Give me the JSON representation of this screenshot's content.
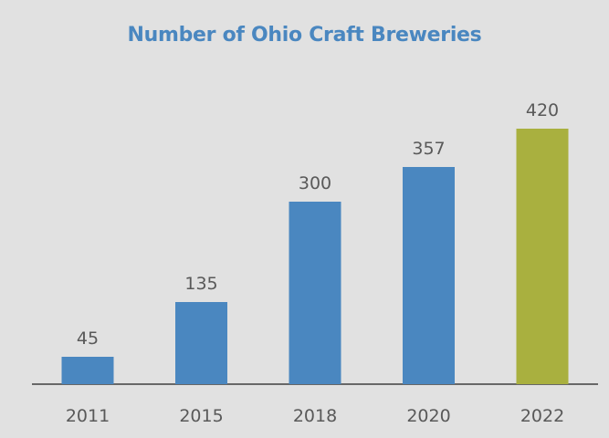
{
  "chart_data": {
    "type": "bar",
    "title": "Number of Ohio Craft Breweries",
    "xlabel": "",
    "ylabel": "",
    "categories": [
      "2011",
      "2015",
      "2018",
      "2020",
      "2022"
    ],
    "values": [
      45,
      135,
      300,
      357,
      420
    ],
    "ylim": [
      0,
      440
    ],
    "grid": false,
    "legend": "none",
    "data_labels": true,
    "colors": {
      "background": "#e1e1e1",
      "title": "#4a87c0",
      "bar": "#4a87c0",
      "highlight_bar": "#a9b03f",
      "axis": "#3f3f3f",
      "text": "#595959"
    },
    "highlight_index": 4
  }
}
